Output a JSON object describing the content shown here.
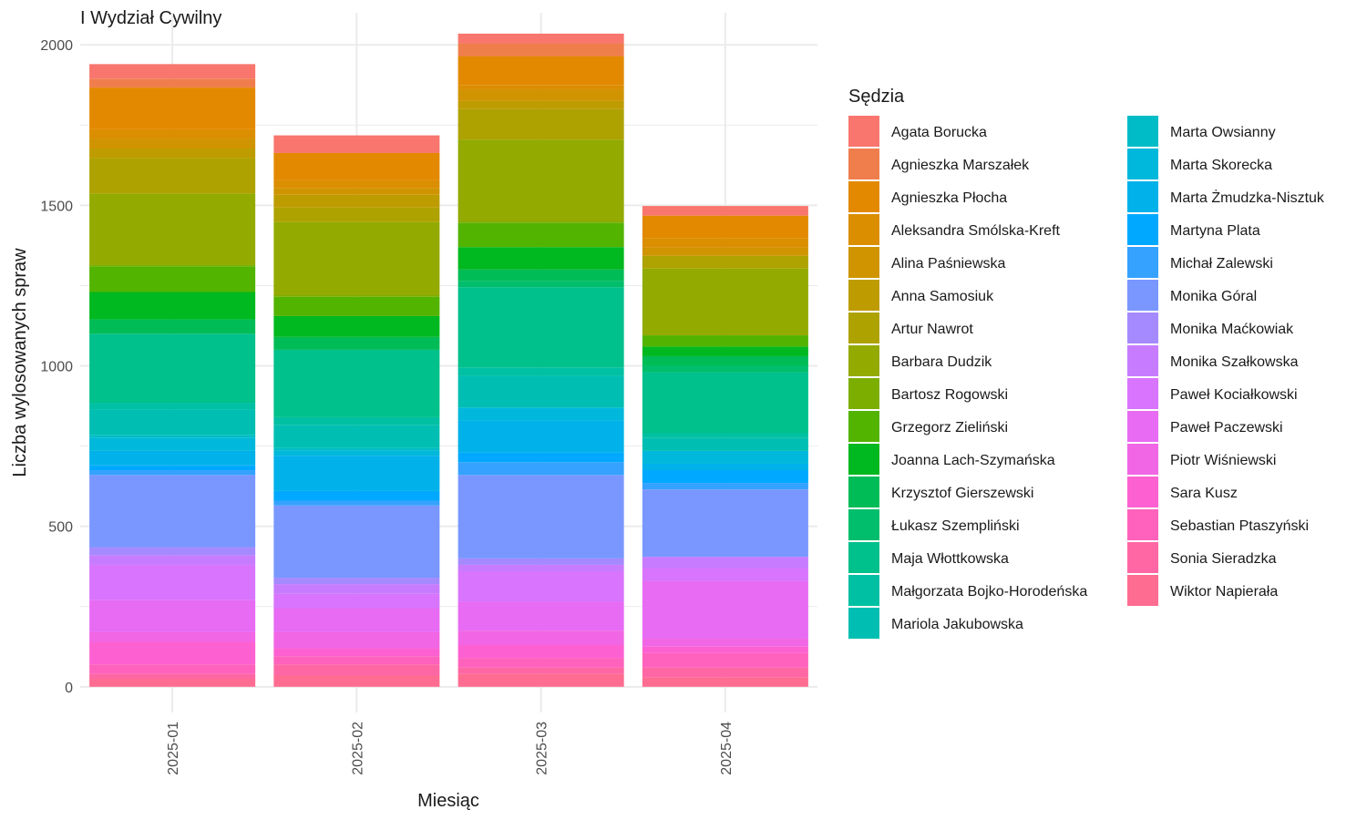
{
  "chart_data": {
    "type": "bar",
    "stacked": true,
    "title": "I Wydział Cywilny",
    "xlabel": "Miesiąc",
    "ylabel": "Liczba wylosowanych spraw",
    "ylim": [
      -80,
      2100
    ],
    "yticks": [
      0,
      500,
      1000,
      1500,
      2000
    ],
    "grid": true,
    "legend": {
      "title": "Sędzia",
      "placement": "right",
      "columns": 2
    },
    "categories": [
      "2025-01",
      "2025-02",
      "2025-03",
      "2025-04"
    ],
    "series": [
      {
        "name": "Agata Borucka",
        "color": "#F8766D",
        "values": [
          45,
          55,
          30,
          30
        ]
      },
      {
        "name": "Agnieszka Marszałek",
        "color": "#F07E4D",
        "values": [
          28,
          0,
          40,
          0
        ]
      },
      {
        "name": "Agnieszka Płocha",
        "color": "#E38900",
        "values": [
          130,
          85,
          90,
          70
        ]
      },
      {
        "name": "Aleksandra Smólska-Kreft",
        "color": "#DB8E00",
        "values": [
          30,
          25,
          15,
          30
        ]
      },
      {
        "name": "Alina Paśniewska",
        "color": "#CF9400",
        "values": [
          30,
          20,
          35,
          25
        ]
      },
      {
        "name": "Anna Samosiuk",
        "color": "#BE9C00",
        "values": [
          30,
          40,
          25,
          0
        ]
      },
      {
        "name": "Artur Nawrot",
        "color": "#AEA200",
        "values": [
          110,
          45,
          95,
          40
        ]
      },
      {
        "name": "Barbara Dudzik",
        "color": "#93AA00",
        "values": [
          222,
          228,
          255,
          208
        ]
      },
      {
        "name": "Bartosz Rogowski",
        "color": "#7CAE00",
        "values": [
          5,
          5,
          5,
          0
        ]
      },
      {
        "name": "Grzegorz Zieliński",
        "color": "#53B400",
        "values": [
          80,
          60,
          75,
          35
        ]
      },
      {
        "name": "Joanna Lach-Szymańska",
        "color": "#00B81F",
        "values": [
          85,
          65,
          70,
          30
        ]
      },
      {
        "name": "Krzysztof Gierszewski",
        "color": "#00BC56",
        "values": [
          45,
          40,
          35,
          30
        ]
      },
      {
        "name": "Łukasz Szempliński",
        "color": "#00BE6C",
        "values": [
          0,
          0,
          20,
          20
        ]
      },
      {
        "name": "Maja Włottkowska",
        "color": "#00C08B",
        "values": [
          215,
          210,
          250,
          190
        ]
      },
      {
        "name": "Małgorzata Bojko-Horodeńska",
        "color": "#00C0A3",
        "values": [
          20,
          25,
          25,
          15
        ]
      },
      {
        "name": "Mariola Jakubowska",
        "color": "#00BFB2",
        "values": [
          80,
          70,
          100,
          40
        ]
      },
      {
        "name": "Marta Owsianny",
        "color": "#00BCC6",
        "values": [
          10,
          10,
          0,
          0
        ]
      },
      {
        "name": "Marta Skorecka",
        "color": "#00B8DB",
        "values": [
          40,
          15,
          40,
          40
        ]
      },
      {
        "name": "Marta Żmudzka-Nisztuk",
        "color": "#00B1EA",
        "values": [
          45,
          110,
          100,
          20
        ]
      },
      {
        "name": "Martyna Plata",
        "color": "#00A9FF",
        "values": [
          15,
          30,
          30,
          40
        ]
      },
      {
        "name": "Michał Zalewski",
        "color": "#35A2FF",
        "values": [
          15,
          15,
          40,
          20
        ]
      },
      {
        "name": "Monika Góral",
        "color": "#7997FF",
        "values": [
          225,
          225,
          260,
          210
        ]
      },
      {
        "name": "Monika Maćkowiak",
        "color": "#A58AFF",
        "values": [
          25,
          20,
          20,
          0
        ]
      },
      {
        "name": "Monika Szałkowska",
        "color": "#C77CFF",
        "values": [
          30,
          30,
          20,
          35
        ]
      },
      {
        "name": "Paweł Kociałkowski",
        "color": "#D874FD",
        "values": [
          110,
          45,
          95,
          40
        ]
      },
      {
        "name": "Paweł Paczewski",
        "color": "#E76BF3",
        "values": [
          100,
          75,
          90,
          180
        ]
      },
      {
        "name": "Piotr Wiśniewski",
        "color": "#F166E4",
        "values": [
          30,
          50,
          45,
          25
        ]
      },
      {
        "name": "Sara Kusz",
        "color": "#FD61D1",
        "values": [
          70,
          25,
          40,
          20
        ]
      },
      {
        "name": "Sebastian Ptaszyński",
        "color": "#FF62BC",
        "values": [
          30,
          25,
          30,
          45
        ]
      },
      {
        "name": "Sonia Sieradzka",
        "color": "#FF67A4",
        "values": [
          15,
          35,
          20,
          30
        ]
      },
      {
        "name": "Wiktor Napierała",
        "color": "#FF6C91",
        "values": [
          25,
          35,
          40,
          30
        ]
      }
    ]
  }
}
